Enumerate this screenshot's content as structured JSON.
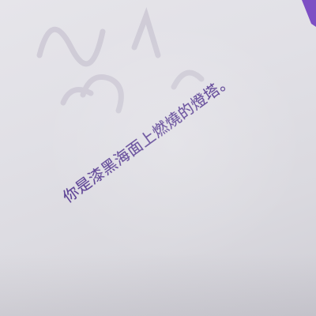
{
  "paper": {
    "quote": "你是漆黑海面上燃燒的燈塔。"
  },
  "colors": {
    "paper": "#e3e2e8",
    "ink": "#5a3f93",
    "corner_accent": "#7d4fc4"
  }
}
